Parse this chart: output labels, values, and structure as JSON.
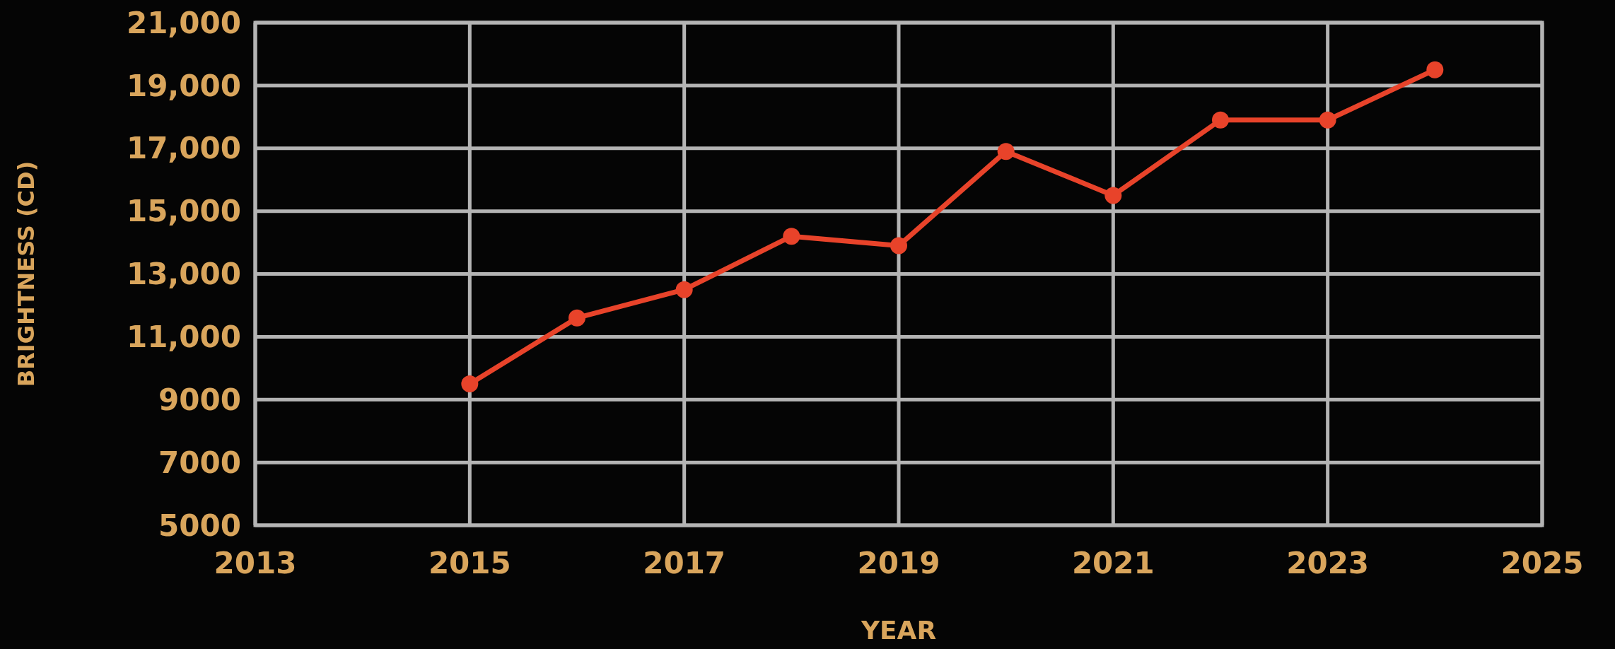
{
  "chart_data": {
    "type": "line",
    "xlabel": "YEAR",
    "ylabel": "BRIGHTNESS (CD)",
    "x": [
      2015,
      2016,
      2017,
      2018,
      2019,
      2020,
      2021,
      2022,
      2023,
      2024
    ],
    "series": [
      {
        "color": "#e8432a",
        "values": [
          9500,
          11600,
          12500,
          14200,
          13900,
          16900,
          15500,
          17900,
          17900,
          19500
        ]
      }
    ],
    "xlim": [
      2013,
      2025
    ],
    "xticks": [
      2013,
      2015,
      2017,
      2019,
      2021,
      2023,
      2025
    ],
    "ylim": [
      5000,
      21000
    ],
    "yticks": [
      {
        "value": 5000,
        "label": "5000"
      },
      {
        "value": 7000,
        "label": "7000"
      },
      {
        "value": 9000,
        "label": "9000"
      },
      {
        "value": 11000,
        "label": "11,000"
      },
      {
        "value": 13000,
        "label": "13,000"
      },
      {
        "value": 15000,
        "label": "15,000"
      },
      {
        "value": 17000,
        "label": "17,000"
      },
      {
        "value": 19000,
        "label": "19,000"
      },
      {
        "value": 21000,
        "label": "21,000"
      }
    ],
    "grid": true,
    "marker": "circle",
    "line_style": "solid"
  }
}
